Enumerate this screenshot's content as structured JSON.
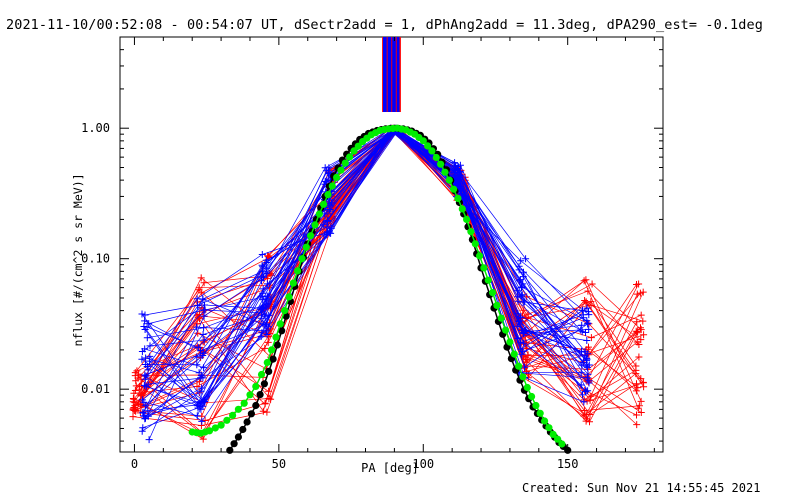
{
  "title": "2021-11-10/00:52:08 - 00:54:07 UT, dSectr2add = 1, dPhAng2add = 11.3deg, dPA290_est= -0.1deg",
  "footer": "Created: Sun Nov 21 14:55:45 2021",
  "colors": {
    "red": "#ff0000",
    "blue": "#0000ff",
    "green": "#00ee00",
    "black": "#000000"
  },
  "chart_data": {
    "type": "line",
    "xlabel": "PA [deg]",
    "ylabel": "nflux [#/(cm^2 s sr MeV)]",
    "xlim": [
      -5,
      183
    ],
    "ylim": [
      0.0033,
      5.0
    ],
    "yscale": "log",
    "x_ticks": [
      0,
      50,
      100,
      150
    ],
    "x_tick_labels": [
      "0",
      "50",
      "100",
      "150"
    ],
    "y_ticks": [
      0.01,
      0.1,
      1.0
    ],
    "y_tick_labels": [
      "0.01",
      "0.10",
      "1.00"
    ],
    "grid": false,
    "series": [
      {
        "color": "black",
        "marker": "filled-circle",
        "x": [
          33,
          36,
          39,
          42,
          45,
          48,
          51,
          54,
          57,
          60,
          63,
          66,
          69,
          72,
          75,
          78,
          81,
          84,
          87,
          90,
          93,
          96,
          99,
          102,
          105,
          108,
          111,
          114,
          117,
          120,
          123,
          126,
          129,
          132,
          135,
          138,
          141,
          144,
          147,
          150
        ],
        "y": [
          0.0034,
          0.0043,
          0.0056,
          0.0075,
          0.011,
          0.017,
          0.028,
          0.047,
          0.08,
          0.13,
          0.2,
          0.3,
          0.43,
          0.57,
          0.7,
          0.82,
          0.91,
          0.96,
          0.99,
          1.0,
          0.99,
          0.95,
          0.88,
          0.77,
          0.63,
          0.48,
          0.33,
          0.22,
          0.14,
          0.085,
          0.053,
          0.033,
          0.021,
          0.014,
          0.0098,
          0.0073,
          0.0058,
          0.0047,
          0.0039,
          0.0034
        ]
      },
      {
        "color": "green",
        "marker": "filled-circle",
        "x": [
          20,
          23,
          26,
          30,
          34,
          38,
          42,
          46,
          49,
          52,
          55,
          58,
          61,
          64,
          67,
          70,
          73,
          76,
          79,
          82,
          85,
          88,
          91,
          94,
          97,
          100,
          103,
          106,
          109,
          112,
          115,
          118,
          121,
          124,
          127,
          130,
          133,
          136,
          139,
          142,
          145,
          148
        ],
        "y": [
          0.0047,
          0.0046,
          0.0048,
          0.0053,
          0.0063,
          0.0078,
          0.0105,
          0.016,
          0.025,
          0.04,
          0.065,
          0.1,
          0.15,
          0.22,
          0.31,
          0.42,
          0.54,
          0.67,
          0.79,
          0.89,
          0.96,
          0.99,
          1.0,
          0.97,
          0.9,
          0.8,
          0.67,
          0.53,
          0.4,
          0.29,
          0.2,
          0.13,
          0.085,
          0.055,
          0.035,
          0.023,
          0.015,
          0.0103,
          0.0075,
          0.0057,
          0.0045,
          0.0038
        ]
      }
    ],
    "fan_red": {
      "color": "red",
      "marker": "plus",
      "x": [
        1,
        23,
        46,
        68,
        90,
        113,
        135,
        157,
        175
      ],
      "y_bands": [
        [
          0.006,
          0.014
        ],
        [
          0.0038,
          0.074
        ],
        [
          0.006,
          0.11
        ],
        [
          0.17,
          0.52
        ],
        [
          0.95,
          1.0
        ],
        [
          0.28,
          0.48
        ],
        [
          0.012,
          0.052
        ],
        [
          0.0055,
          0.07
        ],
        [
          0.0048,
          0.065
        ]
      ]
    },
    "fan_blue": {
      "color": "blue",
      "marker": "plus",
      "x": [
        4,
        23,
        45,
        67,
        90,
        112,
        134,
        156
      ],
      "y_bands": [
        [
          0.0037,
          0.045
        ],
        [
          0.005,
          0.05
        ],
        [
          0.025,
          0.11
        ],
        [
          0.15,
          0.5
        ],
        [
          0.95,
          1.0
        ],
        [
          0.29,
          0.56
        ],
        [
          0.012,
          0.1
        ],
        [
          0.0075,
          0.045
        ]
      ]
    },
    "spikes": {
      "x_range": [
        86,
        92
      ],
      "colors": [
        "red",
        "blue"
      ]
    }
  }
}
